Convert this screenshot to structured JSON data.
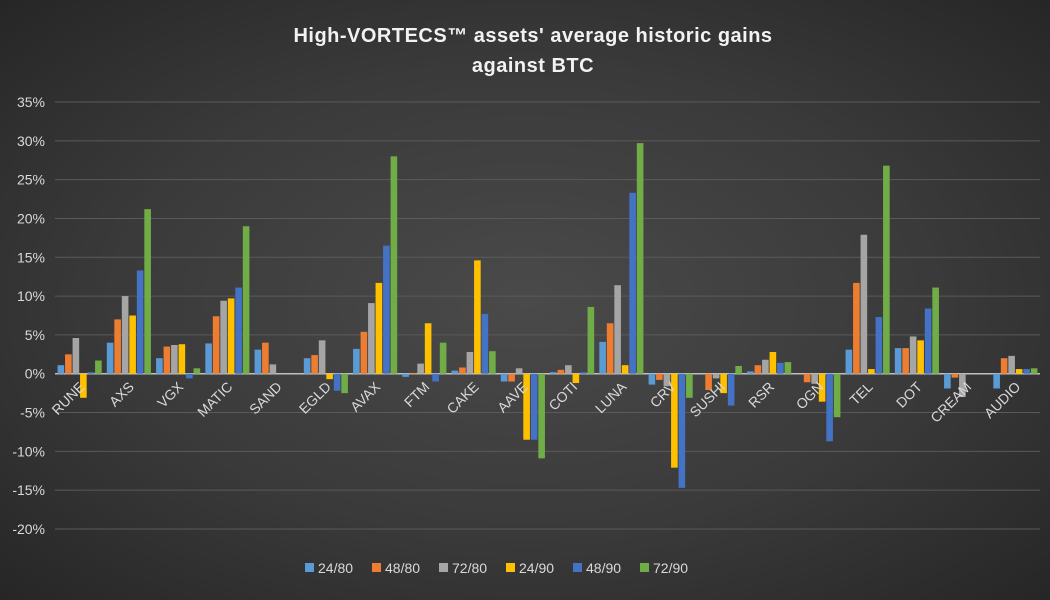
{
  "chart_data": {
    "type": "bar",
    "title": "High-VORTECS™ assets' average historic gains against BTC",
    "title_lines": [
      "High-VORTECS™ assets' average historic gains",
      "against BTC"
    ],
    "xlabel": "",
    "ylabel": "",
    "ylim": [
      -20,
      35
    ],
    "yticks": [
      "35%",
      "30%",
      "25%",
      "20%",
      "15%",
      "10%",
      "5%",
      "0%",
      "-5%",
      "-10%",
      "-15%",
      "-20%"
    ],
    "grid": true,
    "legend": "bottom",
    "categories": [
      "RUNE",
      "AXS",
      "VGX",
      "MATIC",
      "SAND",
      "EGLD",
      "AVAX",
      "FTM",
      "CAKE",
      "AAVE",
      "COTI",
      "LUNA",
      "CRV",
      "SUSHI",
      "RSR",
      "OGN",
      "TEL",
      "DOT",
      "CREAM",
      "AUDIO"
    ],
    "series": [
      {
        "name": "24/80",
        "color": "#5B9BD5",
        "values": [
          1.1,
          4.0,
          2.0,
          3.9,
          3.1,
          2.0,
          3.2,
          -0.4,
          0.4,
          -1.0,
          0.2,
          4.1,
          -1.4,
          0,
          0.3,
          0,
          3.1,
          3.3,
          -1.9,
          -1.9
        ]
      },
      {
        "name": "48/80",
        "color": "#ED7D31",
        "values": [
          2.5,
          7.0,
          3.5,
          7.4,
          4.0,
          2.4,
          5.4,
          0.1,
          0.8,
          -1.0,
          0.5,
          6.5,
          -0.8,
          -2.1,
          1.1,
          -1.1,
          11.7,
          3.3,
          -0.5,
          2.0
        ]
      },
      {
        "name": "72/80",
        "color": "#A5A5A5",
        "values": [
          4.6,
          10.0,
          3.7,
          9.4,
          1.2,
          4.3,
          9.1,
          1.3,
          2.8,
          0.7,
          1.1,
          11.4,
          -1.6,
          -0.6,
          1.8,
          -1.3,
          17.9,
          4.8,
          -3.0,
          2.3
        ]
      },
      {
        "name": "24/90",
        "color": "#FFC000",
        "values": [
          -3.1,
          7.5,
          3.8,
          9.7,
          0,
          -0.7,
          11.7,
          6.5,
          14.6,
          -8.5,
          -1.2,
          1.1,
          -12.1,
          -2.5,
          2.8,
          -3.6,
          0.6,
          4.3,
          0,
          0.6
        ]
      },
      {
        "name": "48/90",
        "color": "#4472C4",
        "values": [
          0.2,
          13.3,
          -0.6,
          11.1,
          0,
          -2.2,
          16.5,
          -1.0,
          7.7,
          -8.5,
          0.2,
          23.3,
          -14.7,
          -4.1,
          1.4,
          -8.7,
          7.3,
          8.4,
          0,
          0.6
        ]
      },
      {
        "name": "72/90",
        "color": "#70AD47",
        "values": [
          1.7,
          21.2,
          0.7,
          19.0,
          0,
          -2.5,
          28.0,
          4.0,
          2.9,
          -10.9,
          8.6,
          29.7,
          -3.1,
          1.0,
          1.5,
          -5.6,
          26.8,
          11.1,
          0,
          0.7
        ]
      }
    ]
  }
}
